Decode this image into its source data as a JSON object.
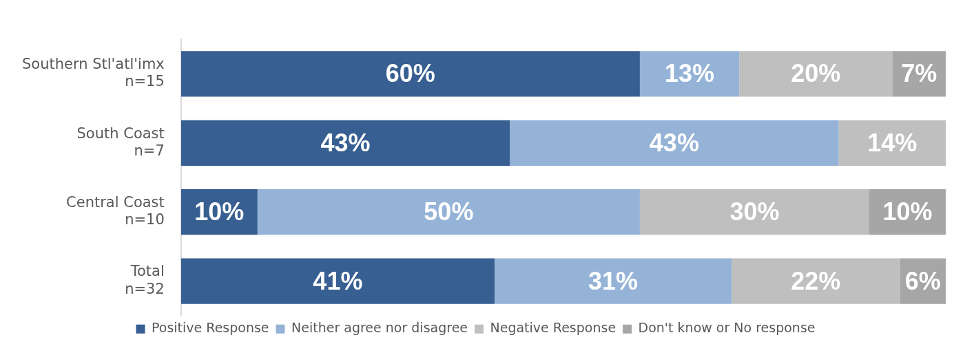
{
  "chart_data": {
    "type": "bar",
    "orientation": "horizontal",
    "stacked": true,
    "legend": "bottom",
    "categories": [
      "Southern Stl'atl'imx\nn=15",
      "South Coast\nn=7",
      "Central Coast\nn=10",
      "Total\nn=32"
    ],
    "series": [
      {
        "name": "Positive Response",
        "color": "#375f91",
        "values": [
          60,
          43,
          10,
          41
        ],
        "value_labels": [
          "60%",
          "43%",
          "10%",
          "41%"
        ]
      },
      {
        "name": "Neither agree nor disagree",
        "color": "#95b3d7",
        "values": [
          13,
          43,
          50,
          31
        ],
        "value_labels": [
          "13%",
          "43%",
          "50%",
          "31%"
        ]
      },
      {
        "name": "Negative Response",
        "color": "#bfbfbf",
        "values": [
          20,
          14,
          30,
          22
        ],
        "value_labels": [
          "20%",
          "14%",
          "30%",
          "22%"
        ]
      },
      {
        "name": "Don't know or No response",
        "color": "#a6a6a6",
        "values": [
          7,
          null,
          10,
          6
        ],
        "value_labels": [
          "7%",
          null,
          "10%",
          "6%"
        ]
      }
    ]
  }
}
